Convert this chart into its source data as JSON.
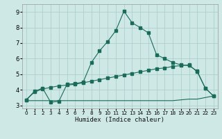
{
  "title": "",
  "xlabel": "Humidex (Indice chaleur)",
  "bg_color": "#cde8e5",
  "grid_color": "#aed0cc",
  "line_color": "#1a6b5a",
  "xlim": [
    -0.5,
    23.5
  ],
  "ylim": [
    2.8,
    9.5
  ],
  "xticks": [
    0,
    1,
    2,
    3,
    4,
    5,
    6,
    7,
    8,
    9,
    10,
    11,
    12,
    13,
    14,
    15,
    16,
    17,
    18,
    19,
    20,
    21,
    22,
    23
  ],
  "yticks": [
    3,
    4,
    5,
    6,
    7,
    8,
    9
  ],
  "line1_x": [
    0,
    1,
    2,
    3,
    4,
    5,
    6,
    7,
    8,
    9,
    10,
    11,
    12,
    13,
    14,
    15,
    16,
    17,
    18,
    19,
    20,
    21,
    22,
    23
  ],
  "line1_y": [
    3.35,
    3.9,
    4.1,
    3.2,
    3.25,
    4.35,
    4.4,
    4.5,
    5.75,
    6.5,
    7.1,
    7.8,
    9.05,
    8.3,
    8.0,
    7.65,
    6.25,
    6.0,
    5.75,
    5.6,
    5.55,
    5.2,
    4.1,
    3.6
  ],
  "line2_x": [
    0,
    1,
    2,
    3,
    4,
    5,
    6,
    7,
    8,
    9,
    10,
    11,
    12,
    13,
    14,
    15,
    16,
    17,
    18,
    19,
    20,
    21,
    22,
    23
  ],
  "line2_y": [
    3.35,
    3.85,
    4.05,
    4.15,
    4.25,
    4.3,
    4.35,
    4.45,
    4.55,
    4.65,
    4.75,
    4.85,
    4.95,
    5.05,
    5.15,
    5.25,
    5.35,
    5.4,
    5.5,
    5.55,
    5.6,
    5.15,
    4.1,
    3.6
  ],
  "line3_x": [
    0,
    1,
    2,
    3,
    4,
    5,
    6,
    7,
    8,
    9,
    10,
    11,
    12,
    13,
    14,
    15,
    16,
    17,
    18,
    19,
    20,
    21,
    22,
    23
  ],
  "line3_y": [
    3.3,
    3.3,
    3.3,
    3.3,
    3.3,
    3.3,
    3.3,
    3.3,
    3.3,
    3.3,
    3.3,
    3.3,
    3.3,
    3.3,
    3.3,
    3.3,
    3.3,
    3.3,
    3.3,
    3.35,
    3.4,
    3.4,
    3.5,
    3.6
  ]
}
